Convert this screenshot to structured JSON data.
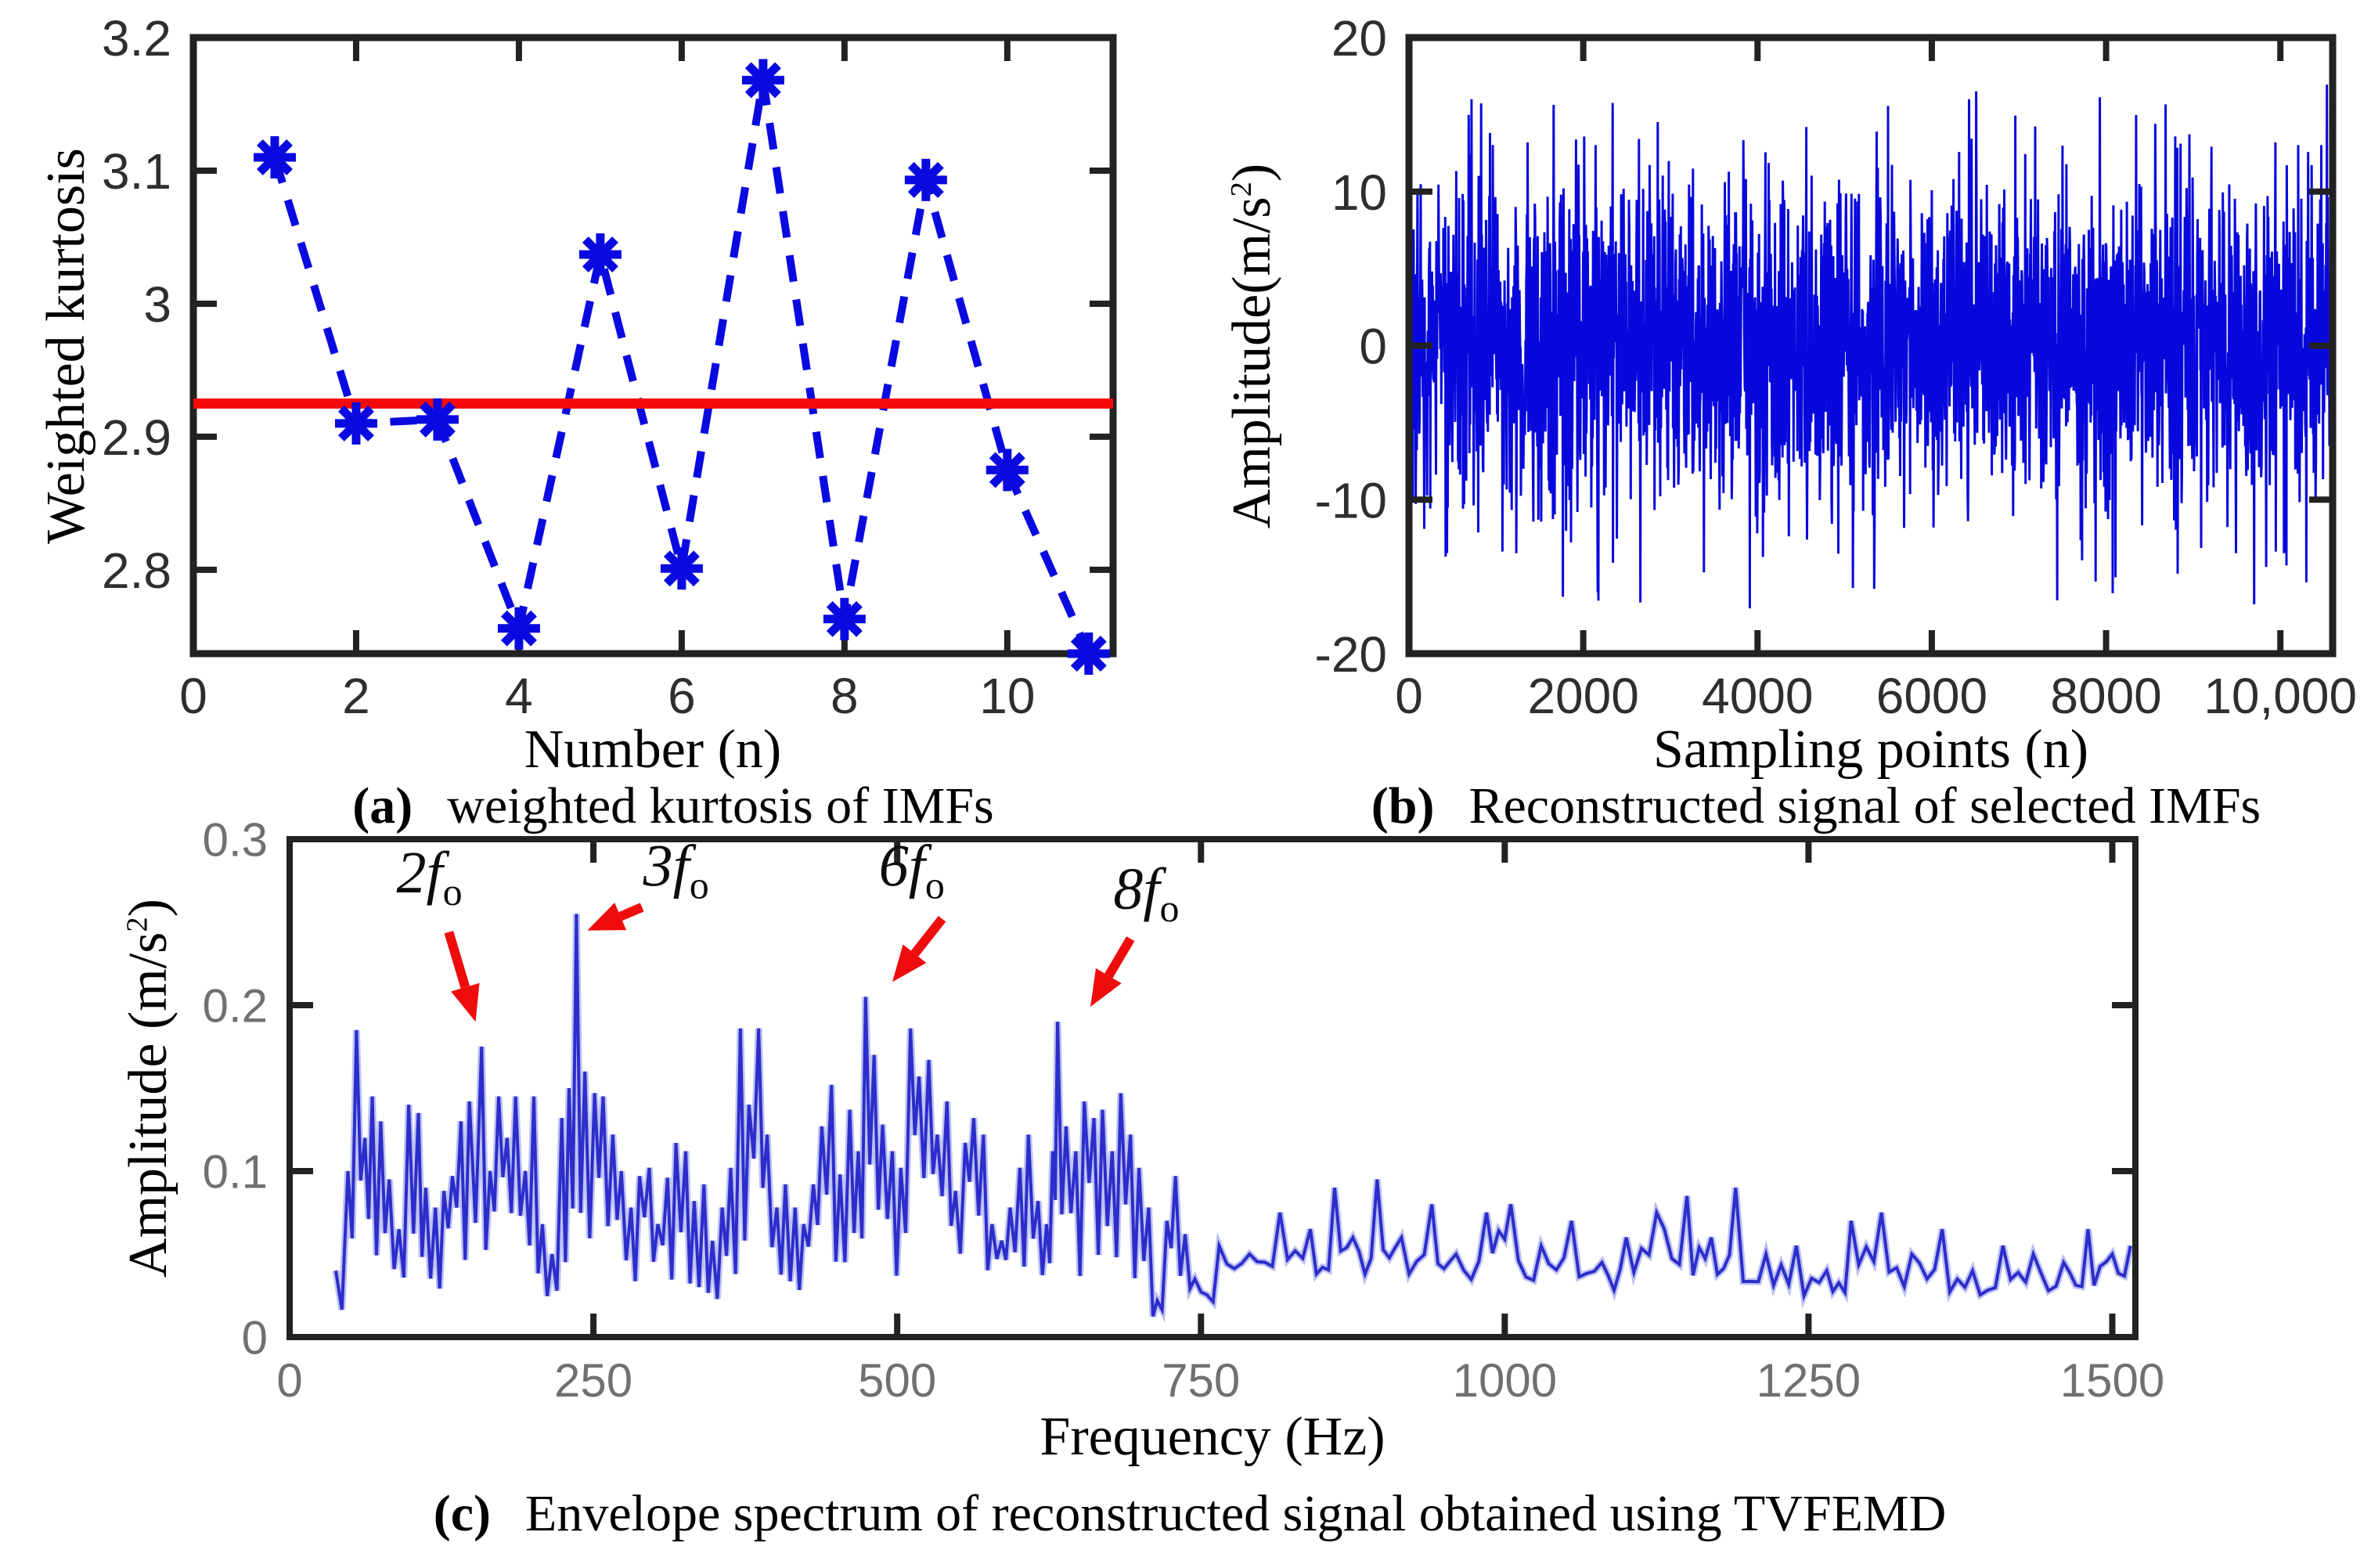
{
  "figure": {
    "background": "#ffffff",
    "axis_color": "#222222",
    "tick_label_color_ab": "#2e2e2e",
    "tick_label_color_c": "#707070"
  },
  "chart_data": [
    {
      "id": "a",
      "type": "line",
      "caption_label": "(a)",
      "caption_text": "weighted kurtosis of IMFs",
      "xlabel": "Number (n)",
      "ylabel_parts": {
        "pre": "Weighted kurtosis",
        "sup": "",
        "post": ""
      },
      "x": [
        1,
        2,
        3,
        4,
        5,
        6,
        7,
        8,
        9,
        10,
        11
      ],
      "y": [
        3.11,
        2.91,
        2.913,
        2.756,
        3.037,
        2.801,
        3.168,
        2.763,
        3.093,
        2.875,
        2.737
      ],
      "threshold": 2.925,
      "xlim": [
        0,
        11.3
      ],
      "ylim": [
        2.737,
        3.2
      ],
      "xticks": {
        "values": [
          0,
          2,
          4,
          6,
          8,
          10
        ],
        "labels": [
          "0",
          "2",
          "4",
          "6",
          "8",
          "10"
        ]
      },
      "yticks": {
        "values": [
          2.8,
          2.9,
          3.0,
          3.1,
          3.2
        ],
        "labels": [
          "2.8",
          "2.9",
          "3",
          "3.1",
          "3.2"
        ]
      },
      "line_style": "dashed",
      "marker": "asterisk",
      "colors": {
        "series": "#0a0ae0",
        "threshold": "#f60909"
      }
    },
    {
      "id": "b",
      "type": "line",
      "caption_label": "(b)",
      "caption_text": "Reconstructed signal of selected IMFs",
      "xlabel": "Sampling points (n)",
      "ylabel_parts": {
        "pre": "Amplitude(m/s",
        "sup": "2",
        "post": ")"
      },
      "xlim": [
        0,
        10600
      ],
      "ylim": [
        -20,
        20
      ],
      "xticks": {
        "values": [
          0,
          2000,
          4000,
          6000,
          8000,
          10000
        ],
        "labels": [
          "0",
          "2000",
          "4000",
          "6000",
          "8000",
          "10,000"
        ]
      },
      "yticks": {
        "values": [
          -20,
          -10,
          0,
          10,
          20
        ],
        "labels": [
          "-20",
          "-10",
          "0",
          "10",
          "20"
        ]
      },
      "signal": {
        "description": "dense broadband noise-like reconstructed vibration signal",
        "n_points": 2600,
        "std": 5.0,
        "max_abs": 17.8,
        "initial_spike": 20,
        "spike_rate": 0.012,
        "spike_min": 12.5,
        "spike_max": 17.5
      },
      "colors": {
        "series": "#0808dd"
      }
    },
    {
      "id": "c",
      "type": "line",
      "caption_label": "(c)",
      "caption_text": "Envelope spectrum of reconstructed signal obtained using TVFEMD",
      "xlabel": "Frequency (Hz)",
      "ylabel_parts": {
        "pre": "Amplitude (m/s",
        "sup": "2",
        "post": ")"
      },
      "xlim": [
        0,
        1519
      ],
      "ylim": [
        0,
        0.3
      ],
      "xticks": {
        "values": [
          0,
          250,
          500,
          750,
          1000,
          1250,
          1500
        ],
        "labels": [
          "0",
          "250",
          "500",
          "750",
          "1000",
          "1250",
          "1500"
        ]
      },
      "yticks": {
        "values": [
          0,
          0.1,
          0.2,
          0.3
        ],
        "labels": [
          "0",
          "0.1",
          "0.2",
          "0.3"
        ]
      },
      "fundamental_hz": 79,
      "key_peaks": [
        [
          38,
          0.04
        ],
        [
          48,
          0.1
        ],
        [
          55,
          0.185
        ],
        [
          62,
          0.12
        ],
        [
          68,
          0.145
        ],
        [
          75,
          0.13
        ],
        [
          82,
          0.095
        ],
        [
          90,
          0.065
        ],
        [
          98,
          0.14
        ],
        [
          106,
          0.135
        ],
        [
          112,
          0.09
        ],
        [
          120,
          0.078
        ],
        [
          127,
          0.088
        ],
        [
          134,
          0.097
        ],
        [
          141,
          0.13
        ],
        [
          148,
          0.142
        ],
        [
          158,
          0.175
        ],
        [
          165,
          0.1
        ],
        [
          172,
          0.145
        ],
        [
          179,
          0.12
        ],
        [
          186,
          0.145
        ],
        [
          194,
          0.1
        ],
        [
          201,
          0.145
        ],
        [
          208,
          0.068
        ],
        [
          216,
          0.05
        ],
        [
          224,
          0.132
        ],
        [
          230,
          0.15
        ],
        [
          236,
          0.255
        ],
        [
          243,
          0.16
        ],
        [
          251,
          0.147
        ],
        [
          258,
          0.145
        ],
        [
          266,
          0.122
        ],
        [
          273,
          0.1
        ],
        [
          281,
          0.078
        ],
        [
          288,
          0.097
        ],
        [
          296,
          0.102
        ],
        [
          303,
          0.068
        ],
        [
          311,
          0.096
        ],
        [
          318,
          0.117
        ],
        [
          326,
          0.112
        ],
        [
          333,
          0.082
        ],
        [
          341,
          0.092
        ],
        [
          348,
          0.058
        ],
        [
          356,
          0.078
        ],
        [
          363,
          0.102
        ],
        [
          371,
          0.186
        ],
        [
          378,
          0.14
        ],
        [
          386,
          0.186
        ],
        [
          393,
          0.122
        ],
        [
          401,
          0.078
        ],
        [
          408,
          0.092
        ],
        [
          416,
          0.078
        ],
        [
          423,
          0.068
        ],
        [
          431,
          0.092
        ],
        [
          438,
          0.127
        ],
        [
          446,
          0.152
        ],
        [
          453,
          0.098
        ],
        [
          461,
          0.137
        ],
        [
          468,
          0.112
        ],
        [
          474,
          0.205
        ],
        [
          481,
          0.17
        ],
        [
          488,
          0.128
        ],
        [
          496,
          0.112
        ],
        [
          503,
          0.102
        ],
        [
          511,
          0.186
        ],
        [
          518,
          0.157
        ],
        [
          526,
          0.167
        ],
        [
          533,
          0.122
        ],
        [
          541,
          0.142
        ],
        [
          548,
          0.088
        ],
        [
          556,
          0.117
        ],
        [
          563,
          0.132
        ],
        [
          571,
          0.122
        ],
        [
          578,
          0.068
        ],
        [
          586,
          0.058
        ],
        [
          593,
          0.078
        ],
        [
          601,
          0.102
        ],
        [
          608,
          0.122
        ],
        [
          616,
          0.082
        ],
        [
          623,
          0.068
        ],
        [
          628,
          0.112
        ],
        [
          632,
          0.19
        ],
        [
          639,
          0.127
        ],
        [
          647,
          0.112
        ],
        [
          654,
          0.142
        ],
        [
          662,
          0.132
        ],
        [
          669,
          0.137
        ],
        [
          677,
          0.112
        ],
        [
          684,
          0.147
        ],
        [
          692,
          0.122
        ],
        [
          699,
          0.102
        ],
        [
          707,
          0.078
        ],
        [
          714,
          0.022
        ],
        [
          722,
          0.07
        ],
        [
          729,
          0.097
        ],
        [
          737,
          0.062
        ],
        [
          745,
          0.035
        ],
        [
          765,
          0.055
        ],
        [
          790,
          0.05
        ],
        [
          815,
          0.075
        ],
        [
          840,
          0.065
        ],
        [
          860,
          0.09
        ],
        [
          875,
          0.06
        ],
        [
          895,
          0.095
        ],
        [
          915,
          0.06
        ],
        [
          940,
          0.08
        ],
        [
          960,
          0.05
        ],
        [
          985,
          0.075
        ],
        [
          1005,
          0.08
        ],
        [
          1030,
          0.055
        ],
        [
          1055,
          0.07
        ],
        [
          1080,
          0.045
        ],
        [
          1100,
          0.06
        ],
        [
          1125,
          0.075
        ],
        [
          1150,
          0.085
        ],
        [
          1170,
          0.06
        ],
        [
          1190,
          0.09
        ],
        [
          1215,
          0.05
        ],
        [
          1240,
          0.055
        ],
        [
          1265,
          0.04
        ],
        [
          1285,
          0.07
        ],
        [
          1310,
          0.075
        ],
        [
          1335,
          0.05
        ],
        [
          1360,
          0.065
        ],
        [
          1385,
          0.04
        ],
        [
          1410,
          0.055
        ],
        [
          1435,
          0.05
        ],
        [
          1460,
          0.045
        ],
        [
          1480,
          0.065
        ],
        [
          1500,
          0.05
        ],
        [
          1515,
          0.055
        ]
      ],
      "annotations": [
        {
          "text": "2f",
          "sub": "o",
          "peak_hz": 158,
          "peak_amp": 0.175,
          "label_x": 115,
          "label_y": 0.268,
          "from": [
            131,
            0.244
          ],
          "to": [
            153,
            0.19
          ]
        },
        {
          "text": "3f",
          "sub": "o",
          "peak_hz": 236,
          "peak_amp": 0.255,
          "label_x": 318,
          "label_y": 0.272,
          "from": [
            290,
            0.259
          ],
          "to": [
            245,
            0.245
          ]
        },
        {
          "text": "6f",
          "sub": "o",
          "peak_hz": 474,
          "peak_amp": 0.205,
          "label_x": 512,
          "label_y": 0.272,
          "from": [
            537,
            0.252
          ],
          "to": [
            496,
            0.214
          ]
        },
        {
          "text": "8f",
          "sub": "o",
          "peak_hz": 632,
          "peak_amp": 0.19,
          "label_x": 705,
          "label_y": 0.258,
          "from": [
            692,
            0.24
          ],
          "to": [
            659,
            0.199
          ]
        }
      ],
      "colors": {
        "series": "#2d2dcb",
        "halo": "#a7aeee",
        "arrow": "#ee0c0c",
        "label": "#0c0c0c"
      }
    }
  ]
}
